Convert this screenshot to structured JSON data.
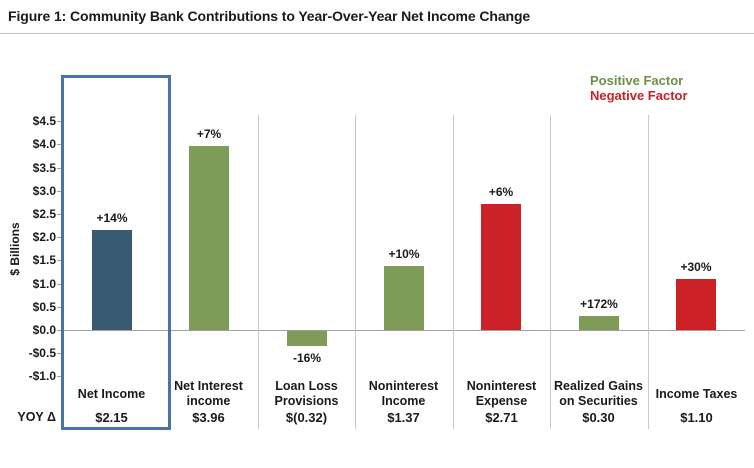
{
  "figure": {
    "title": "Figure 1: Community Bank Contributions to Year-Over-Year Net Income Change"
  },
  "legend": {
    "positive": {
      "label": "Positive Factor",
      "color": "#6E8E44"
    },
    "negative": {
      "label": "Negative Factor",
      "color": "#C2242A"
    }
  },
  "chart_data": {
    "type": "bar",
    "title": "Figure 1: Community Bank Contributions to Year-Over-Year Net Income Change",
    "xlabel": "",
    "ylabel": "$ Billions",
    "ylim": [
      -1.0,
      4.5
    ],
    "ytick_step": 0.5,
    "ytick_values": [
      4.5,
      4.0,
      3.5,
      3.0,
      2.5,
      2.0,
      1.5,
      1.0,
      0.5,
      0.0,
      -0.5,
      -1.0
    ],
    "ytick_labels": [
      "$4.5",
      "$4.0",
      "$3.5",
      "$3.0",
      "$2.5",
      "$2.0",
      "$1.5",
      "$1.0",
      "$0.5",
      "$0.0",
      "-$0.5",
      "-$1.0"
    ],
    "categories": [
      [
        "Net Income"
      ],
      [
        "Net Interest",
        "income"
      ],
      [
        "Loan Loss",
        "Provisions"
      ],
      [
        "Noninterest",
        "Income"
      ],
      [
        "Noninterest",
        "Expense"
      ],
      [
        "Realized Gains",
        "on Securities"
      ],
      [
        "Income Taxes"
      ]
    ],
    "values": [
      2.15,
      3.96,
      -0.32,
      1.37,
      2.71,
      0.3,
      1.1
    ],
    "value_labels": [
      "$2.15",
      "$3.96",
      "$(0.32)",
      "$1.37",
      "$2.71",
      "$0.30",
      "$1.10"
    ],
    "pct_change_labels": [
      "+14%",
      "+7%",
      "-16%",
      "+10%",
      "+6%",
      "+172%",
      "+30%"
    ],
    "factors": [
      "net",
      "positive",
      "positive",
      "positive",
      "negative",
      "positive",
      "negative"
    ],
    "colors": {
      "net": "#395A73",
      "positive": "#7E9C58",
      "negative": "#CC2127",
      "highlight_box": "#4A73A9",
      "axis_line": "#A0A0A0",
      "separator": "#C9C9C9"
    },
    "yoy_row_label": "YOY Δ",
    "highlighted_category": "Net Income",
    "legend_position": "top-right",
    "grid": "vertical-separators-only"
  }
}
